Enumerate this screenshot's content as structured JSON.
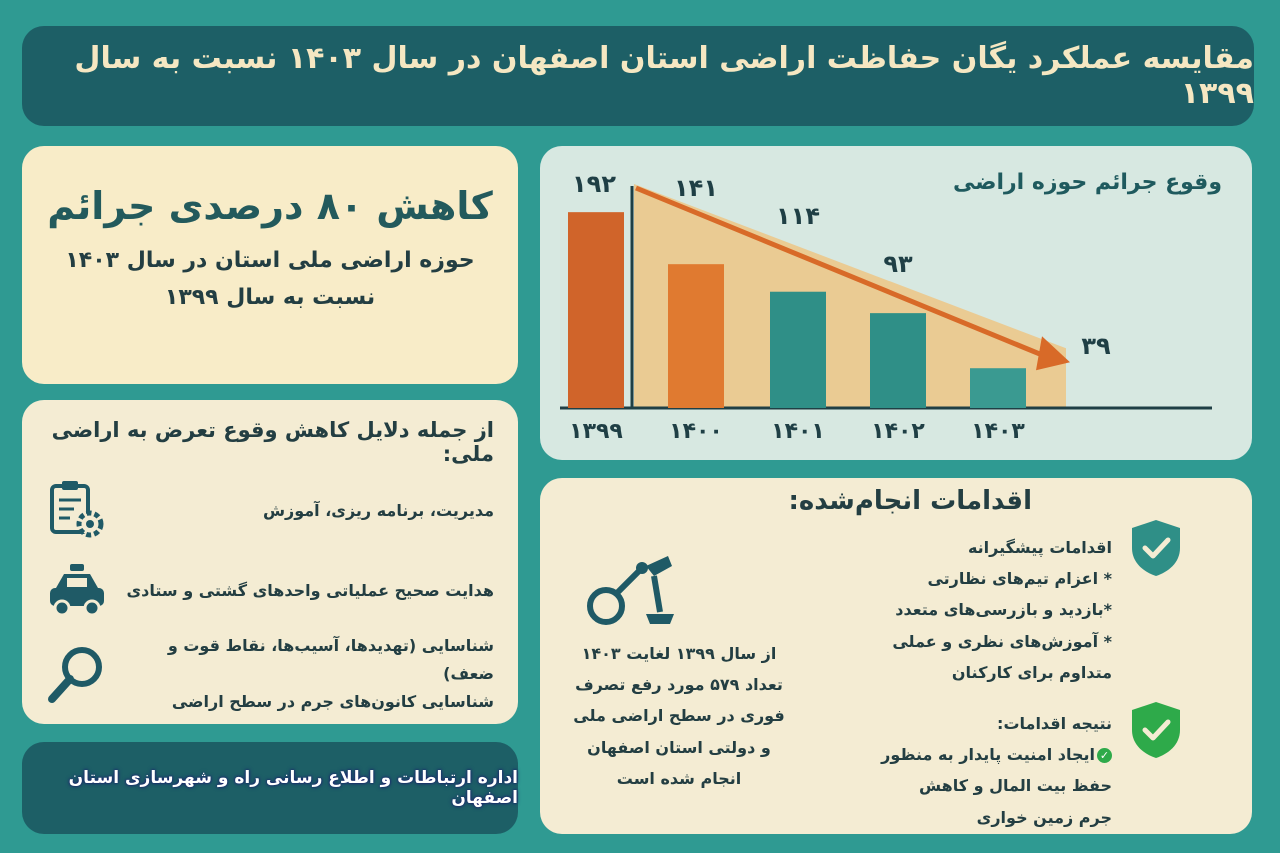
{
  "title": "مقایسه عملکرد یگان حفاظت اراضی استان اصفهان در سال ۱۴۰۳ نسبت به سال ۱۳۹۹",
  "summary": {
    "headline": "کاهش ۸۰ درصدی جرائم",
    "line1": "حوزه اراضی ملی استان در سال ۱۴۰۳",
    "line2": "نسبت به سال ۱۳۹۹"
  },
  "chart_data": {
    "type": "bar",
    "title": "وقوع جرائم حوزه اراضی",
    "categories": [
      "۱۳۹۹",
      "۱۴۰۰",
      "۱۴۰۱",
      "۱۴۰۲",
      "۱۴۰۳"
    ],
    "values": [
      192,
      141,
      114,
      93,
      39
    ],
    "value_labels": [
      "۱۹۲",
      "۱۴۱",
      "۱۱۴",
      "۹۳",
      "۳۹"
    ],
    "bar_colors": [
      "#d0642a",
      "#e07a30",
      "#2f8f87",
      "#2f8f87",
      "#3a9a91"
    ],
    "ylim": [
      0,
      200
    ],
    "trend_arrow": true,
    "grid": false
  },
  "reasons": {
    "heading": "از جمله دلایل کاهش وقوع تعرض به اراضی ملی:",
    "items": [
      {
        "text": "مدیریت، برنامه ریزی، آموزش",
        "icon": "clipboard-gear-icon"
      },
      {
        "text": "هدایت صحیح عملیاتی واحدهای گشتی و ستادی",
        "icon": "patrol-car-icon"
      },
      {
        "text": "شناسایی (تهدیدها، آسیب‌ها، نقاط قوت و ضعف)",
        "text2": "شناسایی کانون‌های جرم در سطح اراضی",
        "icon": "magnifier-icon"
      }
    ]
  },
  "footer": "اداره ارتباطات و اطلاع رسانی راه و شهرسازی استان اصفهان",
  "actions": {
    "heading": "اقدامات انجام‌شده:",
    "prevent": [
      "اقدامات پیشگیرانه",
      "* اعزام تیم‌های نظارتی",
      "*بازدید و بازرسی‌های متعدد",
      "* آموزش‌های نظری و عملی",
      "متداوم برای کارکنان"
    ],
    "result_title": "نتیجه اقدامات:",
    "result": [
      "ایجاد امنیت پایدار به منظور",
      "حفظ بیت المال و کاهش",
      "جرم زمین خواری"
    ],
    "stat": [
      "از سال ۱۳۹۹ لغایت ۱۴۰۳",
      "تعداد ۵۷۹ مورد رفع تصرف",
      "فوری در سطح اراضی ملی",
      "و دولتی استان اصفهان",
      "انجام شده است"
    ],
    "colors": {
      "shield_teal": "#2f8f87",
      "shield_green": "#2eaa4a"
    }
  }
}
